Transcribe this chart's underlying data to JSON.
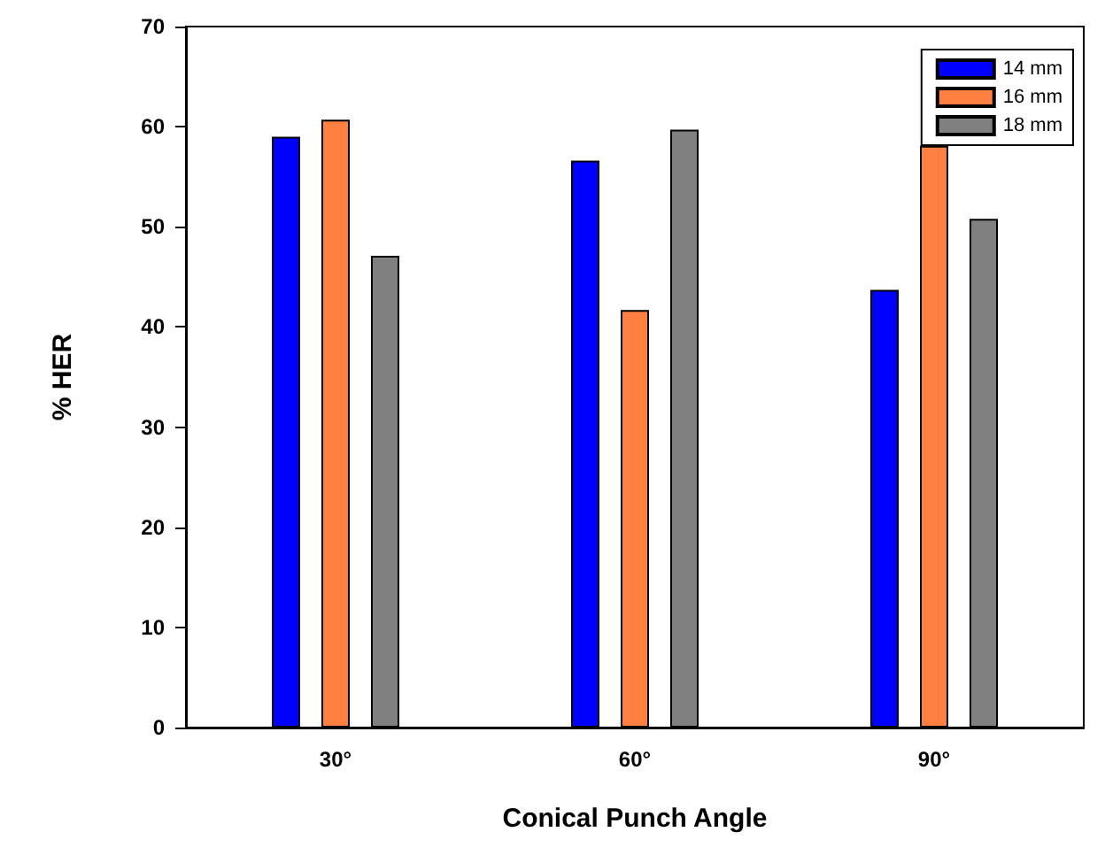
{
  "chart_data": {
    "type": "bar",
    "xlabel": "Conical Punch Angle",
    "ylabel": "% HER",
    "categories": [
      "30°",
      "60°",
      "90°"
    ],
    "series": [
      {
        "name": "14 mm",
        "color": "#0000ff",
        "values": [
          59.0,
          56.6,
          43.7
        ]
      },
      {
        "name": "16 mm",
        "color": "#ff8040",
        "values": [
          60.7,
          41.7,
          58.1
        ]
      },
      {
        "name": "18 mm",
        "color": "#808080",
        "values": [
          47.1,
          59.7,
          50.8
        ]
      }
    ],
    "ylim": [
      0,
      70
    ],
    "yticks": [
      0,
      10,
      20,
      30,
      40,
      50,
      60,
      70
    ],
    "grid": false,
    "legend": "top right"
  }
}
